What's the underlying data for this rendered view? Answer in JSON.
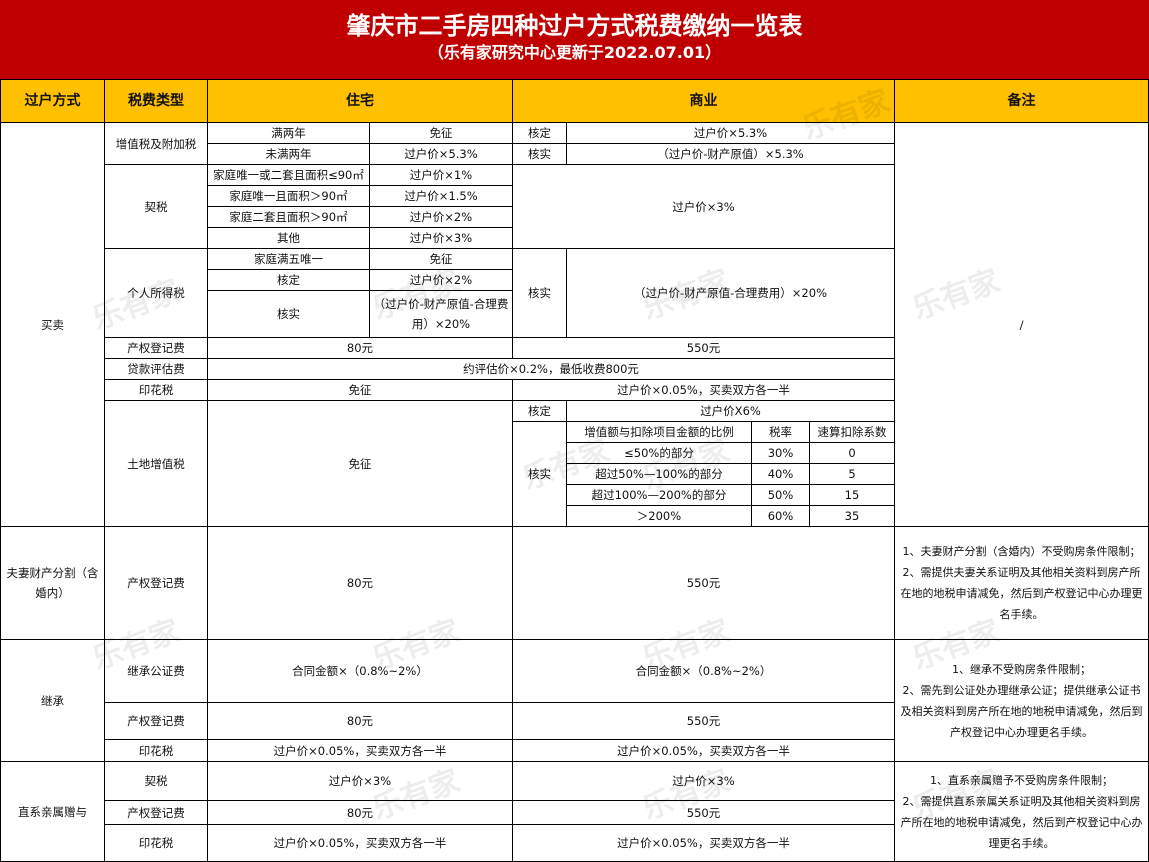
{
  "title": "肇庆市二手房四种过户方式税费缴纳一览表",
  "subtitle": "（乐有家研究中心更新于2022.07.01）",
  "watermark": "乐有家",
  "colors": {
    "title_bg": "#c00000",
    "header_bg": "#ffc000"
  },
  "header": [
    "过户方式",
    "税费类型",
    "住宅",
    "商业",
    "备注"
  ],
  "sale": {
    "method": "买卖",
    "vat": {
      "label": "增值税及附加税",
      "rows": [
        {
          "cond": "满两年",
          "res": "免征",
          "com_label": "核定",
          "com": "过户价×5.3%"
        },
        {
          "cond": "未满两年",
          "res": "过户价×5.3%",
          "com_label": "核实",
          "com": "（过户价-财产原值）×5.3%"
        }
      ]
    },
    "deed": {
      "label": "契税",
      "rows": [
        {
          "cond": "家庭唯一或二套且面积≤90㎡",
          "res": "过户价×1%"
        },
        {
          "cond": "家庭唯一且面积＞90㎡",
          "res": "过户价×1.5%"
        },
        {
          "cond": "家庭二套且面积＞90㎡",
          "res": "过户价×2%"
        },
        {
          "cond": "其他",
          "res": "过户价×3%"
        }
      ],
      "com": "过户价×3%"
    },
    "income": {
      "label": "个人所得税",
      "rows": [
        {
          "cond": "家庭满五唯一",
          "res": "免征"
        },
        {
          "cond": "核定",
          "res": "过户价×2%"
        },
        {
          "cond": "核实",
          "res": "（过户价-财产原值-合理费用）×20%"
        }
      ],
      "com_label": "核实",
      "com": "（过户价-财产原值-合理费用）×20%"
    },
    "reg": {
      "label": "产权登记费",
      "res": "80元",
      "com": "550元"
    },
    "loan": {
      "label": "贷款评估费",
      "all": "约评估价×0.2%，最低收费800元"
    },
    "stamp": {
      "label": "印花税",
      "res": "免征",
      "com": "过户价×0.05%，买卖双方各一半"
    },
    "land": {
      "label": "土地增值税",
      "res": "免征",
      "fixed_label": "核定",
      "fixed": "过户价X6%",
      "actual_label": "核实",
      "table_header": [
        "增值额与扣除项目金额的比例",
        "税率",
        "速算扣除系数"
      ],
      "table_rows": [
        [
          "≤50%的部分",
          "30%",
          "0"
        ],
        [
          "超过50%—100%的部分",
          "40%",
          "5"
        ],
        [
          "超过100%—200%的部分",
          "50%",
          "15"
        ],
        [
          "＞200%",
          "60%",
          "35"
        ]
      ]
    },
    "note": "/"
  },
  "divorce": {
    "method": "夫妻财产分割（含婚内）",
    "reg": {
      "label": "产权登记费",
      "res": "80元",
      "com": "550元"
    },
    "note": "1、夫妻财产分割（含婚内）不受购房条件限制；\n2、需提供夫妻关系证明及其他相关资料到房产所在地的地税申请减免，然后到产权登记中心办理更名手续。"
  },
  "inherit": {
    "method": "继承",
    "notary": {
      "label": "继承公证费",
      "res": "合同金额×（0.8%~2%）",
      "com": "合同金额×（0.8%~2%）"
    },
    "reg": {
      "label": "产权登记费",
      "res": "80元",
      "com": "550元"
    },
    "stamp": {
      "label": "印花税",
      "res": "过户价×0.05%，买卖双方各一半",
      "com": "过户价×0.05%，买卖双方各一半"
    },
    "note": "1、继承不受购房条件限制；\n2、需先到公证处办理继承公证；提供继承公证书及相关资料到房产所在地的地税申请减免，然后到产权登记中心办理更名手续。"
  },
  "gift": {
    "method": "直系亲属赠与",
    "deed": {
      "label": "契税",
      "res": "过户价×3%",
      "com": "过户价×3%"
    },
    "reg": {
      "label": "产权登记费",
      "res": "80元",
      "com": "550元"
    },
    "stamp": {
      "label": "印花税",
      "res": "过户价×0.05%，买卖双方各一半",
      "com": "过户价×0.05%，买卖双方各一半"
    },
    "note": "1、直系亲属赠予不受购房条件限制；\n2、需提供直系亲属关系证明及其他相关资料到房产所在地的地税申请减免，然后到产权登记中心办理更名手续。"
  }
}
